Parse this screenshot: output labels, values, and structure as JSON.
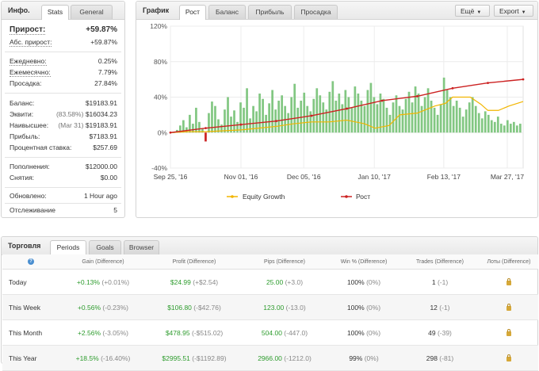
{
  "info": {
    "title": "Инфо.",
    "tabs": [
      "Stats",
      "General"
    ],
    "gain_label": "Прирост:",
    "gain_value": "+59.87%",
    "rows": [
      {
        "label": "Абс. прирост:",
        "value": "+59.87%"
      },
      {
        "label": "Ежедневно:",
        "value": "0.25%"
      },
      {
        "label": "Ежемесячно:",
        "value": "7.79%"
      },
      {
        "label": "Просадка:",
        "value": "27.84%"
      },
      {
        "label": "Баланс:",
        "value": "$19183.91"
      },
      {
        "label": "Эквити:",
        "note": "(83.58%)",
        "value": "$16034.23"
      },
      {
        "label": "Наивысшее:",
        "note": "(Mar 31)",
        "value": "$19183.91"
      },
      {
        "label": "Прибыль:",
        "value": "$7183.91"
      },
      {
        "label": "Процентная ставка:",
        "value": "$257.69"
      },
      {
        "label": "Пополнения:",
        "value": "$12000.00"
      },
      {
        "label": "Снятия:",
        "value": "$0.00"
      },
      {
        "label": "Обновлено:",
        "value": "1 Hour ago"
      },
      {
        "label": "Отслеживание",
        "value": "5"
      }
    ]
  },
  "graph": {
    "title": "График",
    "tabs": [
      "Рост",
      "Баланс",
      "Прибыль",
      "Просадка"
    ],
    "buttons": [
      "Ещё",
      "Export"
    ],
    "legend": [
      "Equity Growth",
      "Рост"
    ],
    "colors": {
      "bars": "#82c782",
      "bars_negative": "#cc2222",
      "growth_line": "#cc2222",
      "equity_line": "#f2b500"
    }
  },
  "chart_data": {
    "type": "bar",
    "x_ticks": [
      "Sep 25, '16",
      "Nov 01, '16",
      "Dec 05, '16",
      "Jan 10, '17",
      "Feb 13, '17",
      "Mar 27, '17"
    ],
    "y_ticks": [
      "120%",
      "80%",
      "40%",
      "0%",
      "-40%"
    ],
    "ylim": [
      -40,
      120
    ],
    "grid": true,
    "legend_position": "bottom",
    "series": [
      {
        "name": "Equity Growth",
        "type": "line",
        "points": [
          [
            0,
            0
          ],
          [
            0.05,
            1
          ],
          [
            0.1,
            1
          ],
          [
            0.15,
            2
          ],
          [
            0.2,
            3
          ],
          [
            0.25,
            5
          ],
          [
            0.3,
            7
          ],
          [
            0.35,
            10
          ],
          [
            0.4,
            12
          ],
          [
            0.45,
            12
          ],
          [
            0.5,
            14
          ],
          [
            0.55,
            10
          ],
          [
            0.58,
            5
          ],
          [
            0.62,
            8
          ],
          [
            0.65,
            20
          ],
          [
            0.7,
            22
          ],
          [
            0.75,
            30
          ],
          [
            0.78,
            33
          ],
          [
            0.8,
            40
          ],
          [
            0.85,
            40
          ],
          [
            0.88,
            32
          ],
          [
            0.9,
            25
          ],
          [
            0.93,
            25
          ],
          [
            0.96,
            30
          ],
          [
            1.0,
            35
          ]
        ]
      },
      {
        "name": "Рост",
        "type": "line",
        "points": [
          [
            0,
            0
          ],
          [
            0.1,
            5
          ],
          [
            0.2,
            9
          ],
          [
            0.3,
            13
          ],
          [
            0.4,
            19
          ],
          [
            0.5,
            27
          ],
          [
            0.6,
            36
          ],
          [
            0.7,
            41
          ],
          [
            0.8,
            50
          ],
          [
            0.9,
            56
          ],
          [
            1.0,
            60
          ]
        ]
      }
    ],
    "bars": [
      0,
      3,
      8,
      14,
      6,
      20,
      10,
      28,
      12,
      5,
      -10,
      22,
      35,
      30,
      15,
      9,
      26,
      40,
      18,
      25,
      12,
      34,
      28,
      50,
      16,
      30,
      24,
      44,
      38,
      20,
      33,
      48,
      26,
      36,
      42,
      30,
      22,
      40,
      55,
      28,
      36,
      45,
      30,
      24,
      38,
      50,
      42,
      34,
      26,
      46,
      58,
      36,
      44,
      32,
      48,
      40,
      28,
      52,
      44,
      36,
      30,
      48,
      56,
      40,
      32,
      44,
      38,
      28,
      20,
      34,
      42,
      30,
      26,
      38,
      46,
      34,
      52,
      44,
      30,
      40,
      50,
      36,
      28,
      20,
      32,
      62,
      48,
      40,
      30,
      36,
      28,
      18,
      26,
      34,
      40,
      30,
      22,
      16,
      24,
      20,
      14,
      12,
      18,
      10,
      8,
      14,
      10,
      12,
      8,
      10
    ]
  },
  "trading": {
    "title": "Торговля",
    "tabs": [
      "Periods",
      "Goals",
      "Browser"
    ],
    "headers": [
      "Gain (Difference)",
      "Profit (Difference)",
      "Pips (Difference)",
      "Win % (Difference)",
      "Trades (Difference)",
      "Лоты (Difference)"
    ],
    "rows": [
      {
        "period": "Today",
        "gain": "+0.13%",
        "gain_diff": "(+0.01%)",
        "profit": "$24.99",
        "profit_diff": "(+$2.54)",
        "pips": "25.00",
        "pips_diff": "(+3.0)",
        "win": "100%",
        "win_diff": "(0%)",
        "trades": "1",
        "trades_diff": "(-1)"
      },
      {
        "period": "This Week",
        "gain": "+0.56%",
        "gain_diff": "(-0.23%)",
        "profit": "$106.80",
        "profit_diff": "(-$42.76)",
        "pips": "123.00",
        "pips_diff": "(-13.0)",
        "win": "100%",
        "win_diff": "(0%)",
        "trades": "12",
        "trades_diff": "(-1)"
      },
      {
        "period": "This Month",
        "gain": "+2.56%",
        "gain_diff": "(-3.05%)",
        "profit": "$478.95",
        "profit_diff": "(-$515.02)",
        "pips": "504.00",
        "pips_diff": "(-447.0)",
        "win": "100%",
        "win_diff": "(0%)",
        "trades": "49",
        "trades_diff": "(-39)"
      },
      {
        "period": "This Year",
        "gain": "+18.5%",
        "gain_diff": "(-16.40%)",
        "profit": "$2995.51",
        "profit_diff": "(-$1192.89)",
        "pips": "2966.00",
        "pips_diff": "(-1212.0)",
        "win": "99%",
        "win_diff": "(0%)",
        "trades": "298",
        "trades_diff": "(-81)"
      }
    ]
  }
}
